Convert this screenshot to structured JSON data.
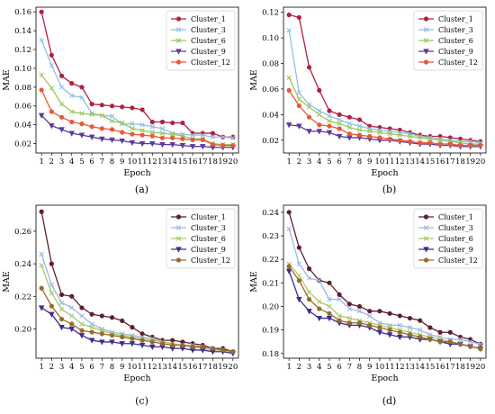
{
  "chart_data": [
    {
      "type": "line",
      "panel_label": "(a)",
      "xlabel": "Epoch",
      "ylabel": "MAE",
      "x": [
        1,
        2,
        3,
        4,
        5,
        6,
        7,
        8,
        9,
        10,
        11,
        12,
        13,
        14,
        15,
        16,
        17,
        18,
        19,
        20
      ],
      "ylim": [
        0.01,
        0.165
      ],
      "yticks": [
        0.02,
        0.04,
        0.06,
        0.08,
        0.1,
        0.12,
        0.14,
        0.16
      ],
      "ytick_labels": [
        "0.02",
        "0.04",
        "0.06",
        "0.08",
        "0.10",
        "0.12",
        "0.14",
        "0.16"
      ],
      "legend": "top-right",
      "series": [
        {
          "name": "Cluster_1",
          "color": "#b22040",
          "marker": "circle",
          "values": [
            0.16,
            0.114,
            0.092,
            0.084,
            0.08,
            0.062,
            0.061,
            0.06,
            0.059,
            0.058,
            0.056,
            0.043,
            0.043,
            0.042,
            0.042,
            0.031,
            0.031,
            0.031,
            0.027,
            0.027
          ]
        },
        {
          "name": "Cluster_3",
          "color": "#8fbfe6",
          "marker": "x",
          "values": [
            0.13,
            0.103,
            0.08,
            0.071,
            0.069,
            0.052,
            0.05,
            0.049,
            0.041,
            0.041,
            0.04,
            0.038,
            0.036,
            0.031,
            0.03,
            0.029,
            0.029,
            0.027,
            0.027,
            0.026
          ]
        },
        {
          "name": "Cluster_6",
          "color": "#9bc95a",
          "marker": "x",
          "values": [
            0.093,
            0.079,
            0.062,
            0.054,
            0.052,
            0.051,
            0.05,
            0.044,
            0.042,
            0.036,
            0.034,
            0.032,
            0.031,
            0.03,
            0.028,
            0.025,
            0.025,
            0.02,
            0.019,
            0.019
          ]
        },
        {
          "name": "Cluster_9",
          "color": "#5b3a9e",
          "marker": "triangle-down",
          "values": [
            0.05,
            0.039,
            0.035,
            0.031,
            0.029,
            0.027,
            0.025,
            0.024,
            0.023,
            0.021,
            0.02,
            0.02,
            0.019,
            0.019,
            0.018,
            0.017,
            0.017,
            0.016,
            0.016,
            0.016
          ]
        },
        {
          "name": "Cluster_12",
          "color": "#e8593a",
          "marker": "circle",
          "values": [
            0.077,
            0.054,
            0.048,
            0.043,
            0.041,
            0.038,
            0.036,
            0.035,
            0.032,
            0.03,
            0.029,
            0.028,
            0.026,
            0.026,
            0.025,
            0.024,
            0.024,
            0.019,
            0.018,
            0.018
          ]
        }
      ]
    },
    {
      "type": "line",
      "panel_label": "(b)",
      "xlabel": "Epoch",
      "ylabel": "MAE",
      "x": [
        1,
        2,
        3,
        4,
        5,
        6,
        7,
        8,
        9,
        10,
        11,
        12,
        13,
        14,
        15,
        16,
        17,
        18,
        19,
        20
      ],
      "ylim": [
        0.01,
        0.124
      ],
      "yticks": [
        0.02,
        0.04,
        0.06,
        0.08,
        0.1,
        0.12
      ],
      "ytick_labels": [
        "0.02",
        "0.04",
        "0.06",
        "0.08",
        "0.10",
        "0.12"
      ],
      "legend": "top-right",
      "series": [
        {
          "name": "Cluster_1",
          "color": "#b22040",
          "marker": "circle",
          "values": [
            0.118,
            0.116,
            0.077,
            0.059,
            0.043,
            0.04,
            0.038,
            0.036,
            0.031,
            0.03,
            0.029,
            0.028,
            0.026,
            0.024,
            0.023,
            0.023,
            0.022,
            0.021,
            0.02,
            0.019
          ]
        },
        {
          "name": "Cluster_3",
          "color": "#8fbfe6",
          "marker": "x",
          "values": [
            0.106,
            0.057,
            0.048,
            0.043,
            0.039,
            0.036,
            0.033,
            0.031,
            0.029,
            0.028,
            0.027,
            0.026,
            0.025,
            0.023,
            0.022,
            0.021,
            0.02,
            0.019,
            0.019,
            0.018
          ]
        },
        {
          "name": "Cluster_6",
          "color": "#9bc95a",
          "marker": "x",
          "values": [
            0.069,
            0.052,
            0.046,
            0.04,
            0.035,
            0.033,
            0.03,
            0.028,
            0.027,
            0.026,
            0.025,
            0.024,
            0.023,
            0.022,
            0.021,
            0.02,
            0.019,
            0.018,
            0.017,
            0.017
          ]
        },
        {
          "name": "Cluster_9",
          "color": "#5b3a9e",
          "marker": "triangle-down",
          "values": [
            0.032,
            0.031,
            0.027,
            0.027,
            0.026,
            0.023,
            0.022,
            0.022,
            0.021,
            0.02,
            0.02,
            0.019,
            0.018,
            0.017,
            0.017,
            0.016,
            0.016,
            0.015,
            0.015,
            0.015
          ]
        },
        {
          "name": "Cluster_12",
          "color": "#e8593a",
          "marker": "circle",
          "values": [
            0.059,
            0.047,
            0.038,
            0.032,
            0.031,
            0.029,
            0.025,
            0.024,
            0.023,
            0.022,
            0.021,
            0.02,
            0.019,
            0.018,
            0.018,
            0.017,
            0.017,
            0.016,
            0.016,
            0.016
          ]
        }
      ]
    },
    {
      "type": "line",
      "panel_label": "(c)",
      "xlabel": "Epoch",
      "ylabel": "MAE",
      "x": [
        1,
        2,
        3,
        4,
        5,
        6,
        7,
        8,
        9,
        10,
        11,
        12,
        13,
        14,
        15,
        16,
        17,
        18,
        19,
        20
      ],
      "ylim": [
        0.182,
        0.276
      ],
      "yticks": [
        0.2,
        0.22,
        0.24,
        0.26
      ],
      "ytick_labels": [
        "0.20",
        "0.22",
        "0.24",
        "0.26"
      ],
      "legend": "top-right",
      "series": [
        {
          "name": "Cluster_1",
          "color": "#5e1f2e",
          "marker": "circle",
          "values": [
            0.272,
            0.24,
            0.221,
            0.22,
            0.213,
            0.209,
            0.208,
            0.207,
            0.205,
            0.201,
            0.197,
            0.195,
            0.193,
            0.193,
            0.192,
            0.191,
            0.19,
            0.188,
            0.188,
            0.186
          ]
        },
        {
          "name": "Cluster_3",
          "color": "#9cb8e4",
          "marker": "x",
          "values": [
            0.246,
            0.227,
            0.216,
            0.213,
            0.208,
            0.203,
            0.2,
            0.198,
            0.197,
            0.196,
            0.195,
            0.194,
            0.192,
            0.191,
            0.19,
            0.19,
            0.189,
            0.188,
            0.187,
            0.186
          ]
        },
        {
          "name": "Cluster_6",
          "color": "#a8c86a",
          "marker": "x",
          "values": [
            0.239,
            0.222,
            0.212,
            0.208,
            0.203,
            0.201,
            0.199,
            0.197,
            0.196,
            0.195,
            0.194,
            0.193,
            0.192,
            0.191,
            0.19,
            0.189,
            0.188,
            0.187,
            0.187,
            0.186
          ]
        },
        {
          "name": "Cluster_9",
          "color": "#3a2f8f",
          "marker": "triangle-down",
          "values": [
            0.213,
            0.209,
            0.201,
            0.2,
            0.196,
            0.193,
            0.192,
            0.192,
            0.191,
            0.191,
            0.19,
            0.189,
            0.189,
            0.188,
            0.188,
            0.187,
            0.187,
            0.186,
            0.186,
            0.185
          ]
        },
        {
          "name": "Cluster_12",
          "color": "#9a6a2a",
          "marker": "circle",
          "values": [
            0.225,
            0.214,
            0.206,
            0.203,
            0.199,
            0.198,
            0.197,
            0.196,
            0.195,
            0.194,
            0.193,
            0.192,
            0.191,
            0.19,
            0.19,
            0.189,
            0.189,
            0.188,
            0.187,
            0.186
          ]
        }
      ]
    },
    {
      "type": "line",
      "panel_label": "(d)",
      "xlabel": "Epoch",
      "ylabel": "MAE",
      "x": [
        1,
        2,
        3,
        4,
        5,
        6,
        7,
        8,
        9,
        10,
        11,
        12,
        13,
        14,
        15,
        16,
        17,
        18,
        19,
        20
      ],
      "ylim": [
        0.178,
        0.243
      ],
      "yticks": [
        0.18,
        0.19,
        0.2,
        0.21,
        0.22,
        0.23,
        0.24
      ],
      "ytick_labels": [
        "0.18",
        "0.19",
        "0.20",
        "0.21",
        "0.22",
        "0.23",
        "0.24"
      ],
      "legend": "top-right",
      "series": [
        {
          "name": "Cluster_1",
          "color": "#5e1f2e",
          "marker": "circle",
          "values": [
            0.24,
            0.225,
            0.216,
            0.211,
            0.21,
            0.205,
            0.201,
            0.2,
            0.198,
            0.198,
            0.197,
            0.196,
            0.195,
            0.194,
            0.191,
            0.189,
            0.189,
            0.187,
            0.186,
            0.184
          ]
        },
        {
          "name": "Cluster_3",
          "color": "#9cb8e4",
          "marker": "x",
          "values": [
            0.233,
            0.218,
            0.212,
            0.211,
            0.203,
            0.203,
            0.199,
            0.198,
            0.196,
            0.193,
            0.192,
            0.192,
            0.191,
            0.19,
            0.188,
            0.187,
            0.186,
            0.186,
            0.185,
            0.184
          ]
        },
        {
          "name": "Cluster_6",
          "color": "#a8c86a",
          "marker": "x",
          "values": [
            0.218,
            0.213,
            0.206,
            0.202,
            0.2,
            0.196,
            0.195,
            0.194,
            0.193,
            0.192,
            0.191,
            0.19,
            0.189,
            0.188,
            0.187,
            0.186,
            0.185,
            0.184,
            0.183,
            0.182
          ]
        },
        {
          "name": "Cluster_9",
          "color": "#3a2f8f",
          "marker": "triangle-down",
          "values": [
            0.215,
            0.203,
            0.198,
            0.195,
            0.195,
            0.193,
            0.192,
            0.192,
            0.191,
            0.189,
            0.188,
            0.187,
            0.187,
            0.186,
            0.186,
            0.185,
            0.184,
            0.184,
            0.183,
            0.182
          ]
        },
        {
          "name": "Cluster_12",
          "color": "#9a6a2a",
          "marker": "circle",
          "values": [
            0.217,
            0.211,
            0.203,
            0.199,
            0.197,
            0.194,
            0.193,
            0.193,
            0.192,
            0.191,
            0.19,
            0.189,
            0.188,
            0.187,
            0.186,
            0.185,
            0.185,
            0.184,
            0.183,
            0.182
          ]
        }
      ]
    }
  ]
}
